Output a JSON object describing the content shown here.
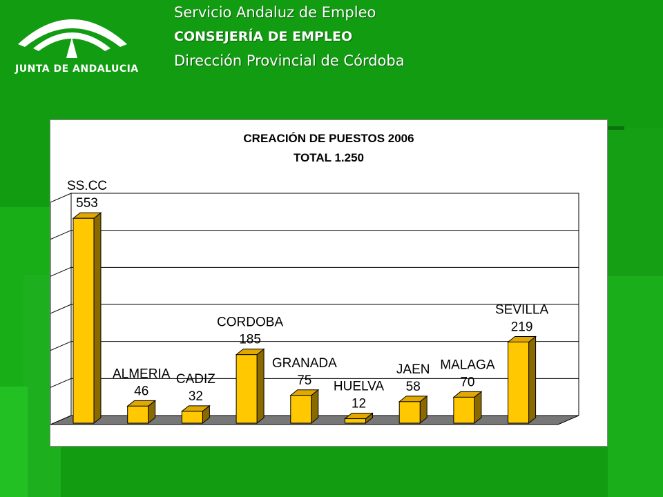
{
  "header": {
    "line1": "Servicio Andaluz de Empleo",
    "line2": "CONSEJERÍA DE EMPLEO",
    "line3": "Dirección Provincial de Córdoba"
  },
  "logo": {
    "text": "JUNTA DE ANDALUCIA",
    "icon": "junta-andalucia-logo"
  },
  "colors": {
    "background": "#129c12",
    "bar_front": "#ffc800",
    "bar_side": "#8a6a00",
    "bar_top": "#e0a800",
    "floor": "#777777"
  },
  "chart_data": {
    "type": "bar",
    "title": "CREACIÓN DE PUESTOS 2006",
    "subtitle": "TOTAL 1.250",
    "categories": [
      "SS.CC",
      "ALMERIA",
      "CADIZ",
      "CORDOBA",
      "GRANADA",
      "HUELVA",
      "JAEN",
      "MALAGA",
      "SEVILLA"
    ],
    "values": [
      553,
      46,
      32,
      185,
      75,
      12,
      58,
      70,
      219
    ],
    "value_labels": [
      "553",
      "46",
      "32",
      "185",
      "75",
      "12",
      "58",
      "70",
      "219"
    ],
    "ylim": [
      0,
      600
    ],
    "grid": true,
    "legend": "none",
    "style": "3d-column"
  }
}
